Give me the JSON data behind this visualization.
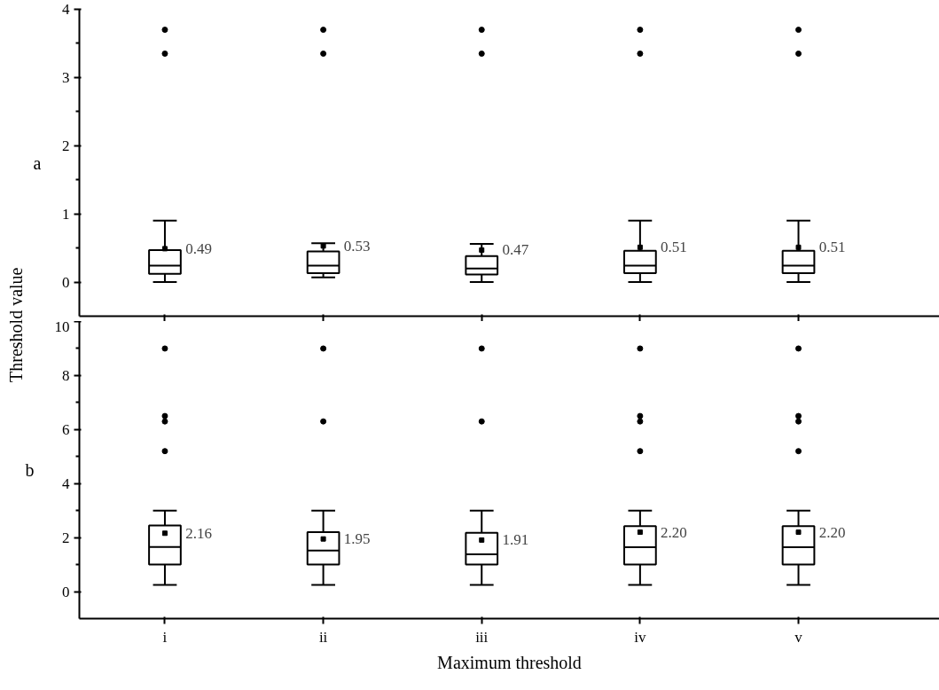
{
  "chart_data": [
    {
      "type": "box",
      "categories": [
        null,
        null,
        null,
        null,
        null
      ],
      "ylabel": "Threshold value",
      "annotations": [
        "a"
      ],
      "ylim": [
        -0.5,
        4
      ],
      "yticks": [
        0,
        1,
        2,
        3,
        4
      ],
      "grid": false,
      "tick_labels": "y",
      "boxes": [
        {
          "low": 0,
          "q1": 0.12,
          "median": 0.24,
          "q3": 0.47,
          "high": 0.9,
          "mean": 0.49,
          "outliers": [
            3.35,
            3.7
          ]
        },
        {
          "low": 0.07,
          "q1": 0.13,
          "median": 0.24,
          "q3": 0.45,
          "high": 0.57,
          "mean": 0.53,
          "outliers": [
            3.35,
            3.7
          ]
        },
        {
          "low": 0,
          "q1": 0.11,
          "median": 0.2,
          "q3": 0.38,
          "high": 0.56,
          "mean": 0.47,
          "outliers": [
            3.35,
            3.7
          ]
        },
        {
          "low": 0,
          "q1": 0.13,
          "median": 0.24,
          "q3": 0.46,
          "high": 0.9,
          "mean": 0.51,
          "outliers": [
            3.35,
            3.7
          ]
        },
        {
          "low": 0,
          "q1": 0.13,
          "median": 0.24,
          "q3": 0.46,
          "high": 0.9,
          "mean": 0.51,
          "outliers": [
            3.35,
            3.7
          ]
        }
      ],
      "value_labels": [
        "0.49",
        "0.53",
        "0.47",
        "0.51",
        "0.51"
      ]
    },
    {
      "type": "box",
      "categories": [
        "i",
        "ii",
        "iii",
        "iv",
        "v"
      ],
      "xlabel": "Maximum threshold",
      "annotations": [
        "b"
      ],
      "ylim": [
        -1,
        10
      ],
      "yticks": [
        0,
        2,
        4,
        6,
        8,
        10
      ],
      "grid": false,
      "boxes": [
        {
          "low": 0.25,
          "q1": 1,
          "median": 1.65,
          "q3": 2.45,
          "high": 3,
          "mean": 2.16,
          "outliers": [
            5.2,
            6.3,
            6.5,
            9
          ]
        },
        {
          "low": 0.25,
          "q1": 1,
          "median": 1.52,
          "q3": 2.2,
          "high": 3,
          "mean": 1.95,
          "outliers": [
            6.3,
            9
          ]
        },
        {
          "low": 0.25,
          "q1": 1,
          "median": 1.38,
          "q3": 2.18,
          "high": 3,
          "mean": 1.91,
          "outliers": [
            6.3,
            9
          ]
        },
        {
          "low": 0.25,
          "q1": 1,
          "median": 1.64,
          "q3": 2.42,
          "high": 3,
          "mean": 2.2,
          "outliers": [
            5.2,
            6.3,
            6.5,
            9
          ]
        },
        {
          "low": 0.25,
          "q1": 1,
          "median": 1.64,
          "q3": 2.42,
          "high": 3,
          "mean": 2.2,
          "outliers": [
            5.2,
            6.3,
            6.5,
            9
          ]
        }
      ],
      "value_labels": [
        "2.16",
        "1.95",
        "1.91",
        "2.20",
        "2.20"
      ]
    }
  ]
}
